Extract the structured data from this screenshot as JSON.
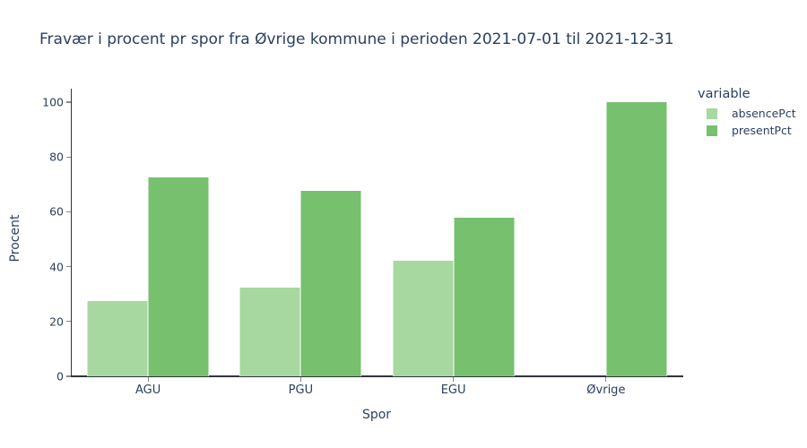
{
  "title": "Fravær i procent pr spor fra Øvrige kommune i perioden 2021-07-01 til 2021-12-31",
  "legend": {
    "title": "variable",
    "items": [
      {
        "label": "absencePct",
        "color": "#a6d89f"
      },
      {
        "label": "presentPct",
        "color": "#77c06e"
      }
    ]
  },
  "chart_data": {
    "type": "bar",
    "mode": "grouped",
    "title": "Fravær i procent pr spor fra Øvrige kommune i perioden 2021-07-01 til 2021-12-31",
    "categories": [
      "AGU",
      "PGU",
      "EGU",
      "Øvrige"
    ],
    "series": [
      {
        "name": "absencePct",
        "color": "#a6d89f",
        "values": [
          27.4,
          32.2,
          42.3,
          0
        ]
      },
      {
        "name": "presentPct",
        "color": "#77c06e",
        "values": [
          72.6,
          67.8,
          57.7,
          100
        ]
      }
    ],
    "xlabel": "Spor",
    "ylabel": "Procent",
    "ylim": [
      0,
      104.6
    ],
    "yticks": [
      0,
      20,
      40,
      60,
      80,
      100
    ],
    "legend_title": "variable",
    "legend_position": "right",
    "grid": false,
    "background_color": "#ffffff",
    "text_color": "#2a3f5f"
  }
}
